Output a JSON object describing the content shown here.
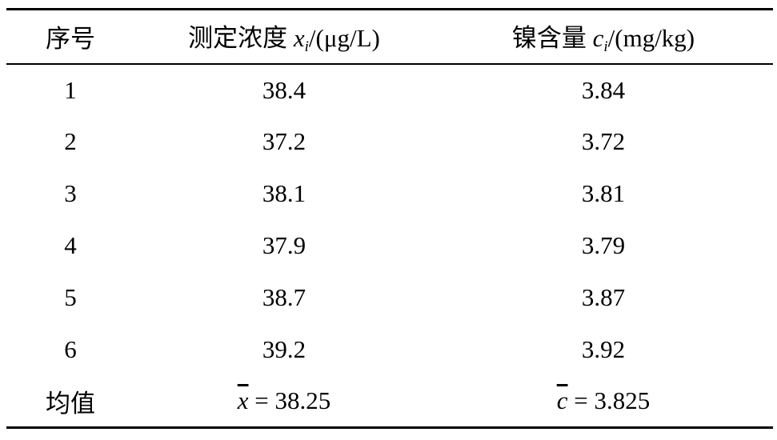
{
  "table": {
    "headers": {
      "index": "序号",
      "concentration_prefix": "测定浓度 ",
      "concentration_var": "x",
      "concentration_sub": "i",
      "concentration_unit": "/(μg/L)",
      "nickel_prefix": "镍含量 ",
      "nickel_var": "c",
      "nickel_sub": "i",
      "nickel_unit": "/(mg/kg)"
    },
    "rows": [
      {
        "index": "1",
        "concentration": "38.4",
        "nickel": "3.84"
      },
      {
        "index": "2",
        "concentration": "37.2",
        "nickel": "3.72"
      },
      {
        "index": "3",
        "concentration": "38.1",
        "nickel": "3.81"
      },
      {
        "index": "4",
        "concentration": "37.9",
        "nickel": "3.79"
      },
      {
        "index": "5",
        "concentration": "38.7",
        "nickel": "3.87"
      },
      {
        "index": "6",
        "concentration": "39.2",
        "nickel": "3.92"
      }
    ],
    "mean": {
      "label": "均值",
      "concentration_var": "x",
      "concentration_value": " = 38.25",
      "nickel_var": "c",
      "nickel_value": " = 3.825"
    }
  }
}
